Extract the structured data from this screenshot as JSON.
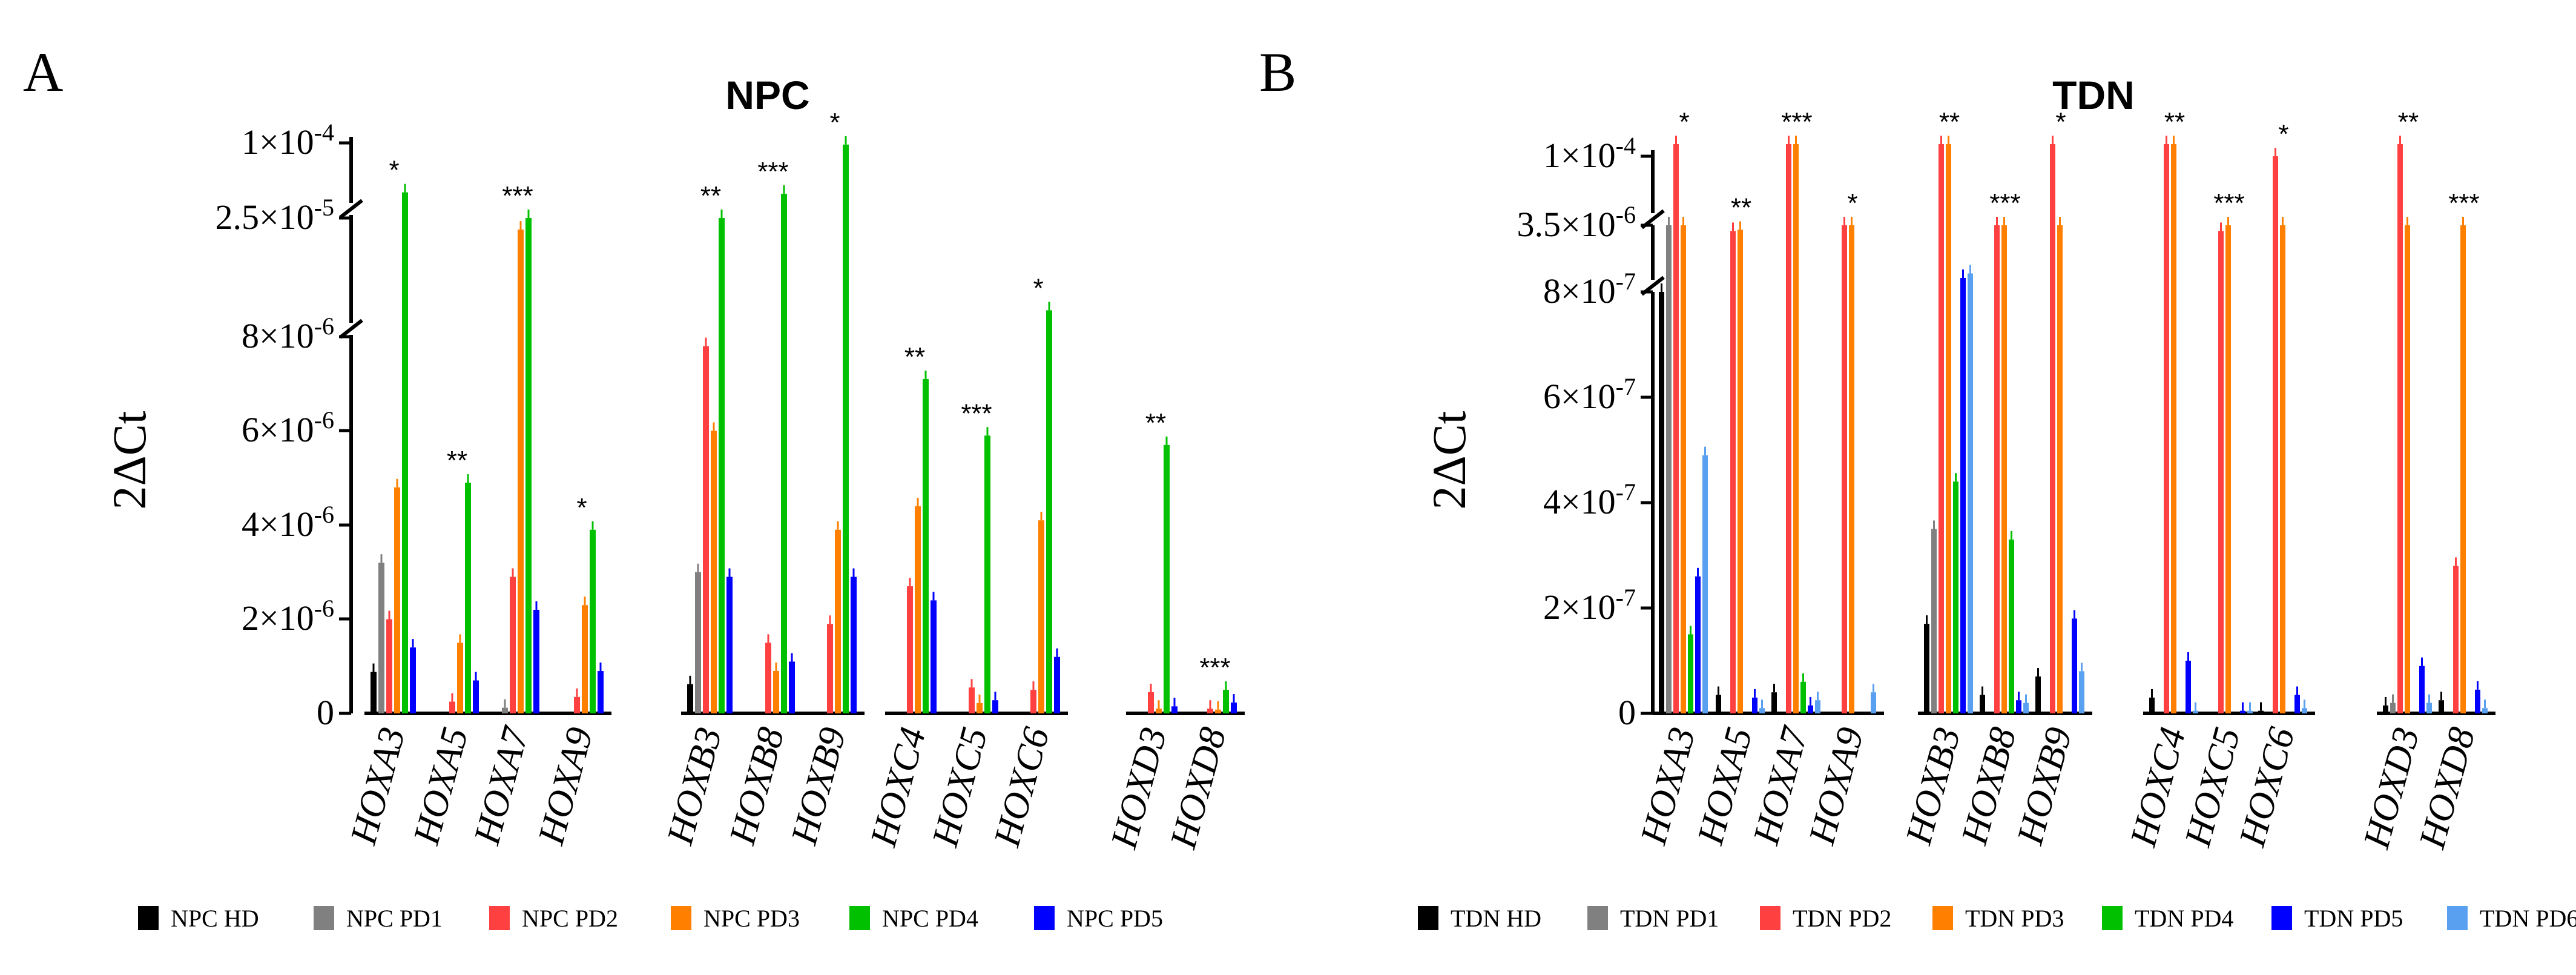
{
  "chart_data": [
    {
      "panel": "A",
      "type": "bar",
      "title": "NPC",
      "ylabel": "2ΔCt",
      "y_tick_labels": [
        "0",
        "2×10-6",
        "4×10-6",
        "6×10-6",
        "8×10-6",
        "2.5×10-5",
        "1×10-4"
      ],
      "y_ticks_values": [
        0,
        2e-06,
        4e-06,
        6e-06,
        8e-06,
        2.5e-05,
        0.0001
      ],
      "axis_break": "segmented y-axis with breaks above 8×10-6 and 2.5×10-5",
      "gene_groups": [
        [
          "HOXA3",
          "HOXA5",
          "HOXA7",
          "HOXA9"
        ],
        [
          "HOXB3",
          "HOXB8",
          "HOXB9"
        ],
        [
          "HOXC4",
          "HOXC5",
          "HOXC6"
        ],
        [
          "HOXD3",
          "HOXD8"
        ]
      ],
      "categories": [
        "HOXA3",
        "HOXA5",
        "HOXA7",
        "HOXA9",
        "HOXB3",
        "HOXB8",
        "HOXB9",
        "HOXC4",
        "HOXC5",
        "HOXC6",
        "HOXD3",
        "HOXD8"
      ],
      "series": [
        {
          "name": "NPC HD",
          "color": "#000000",
          "values": [
            8.8e-07,
            0,
            0,
            0,
            6.2e-07,
            0,
            0,
            0,
            0,
            0,
            0,
            0
          ]
        },
        {
          "name": "NPC PD1",
          "color": "#808080",
          "values": [
            3.2e-06,
            0,
            1.2e-07,
            0,
            3e-06,
            0,
            0,
            0,
            0,
            0,
            0,
            0
          ]
        },
        {
          "name": "NPC PD2",
          "color": "#ff4040",
          "values": [
            2e-06,
            2.5e-07,
            2.9e-06,
            3.5e-07,
            7.8e-06,
            1.5e-06,
            1.9e-06,
            2.7e-06,
            5.5e-07,
            5e-07,
            4.5e-07,
            1e-07
          ]
        },
        {
          "name": "NPC PD3",
          "color": "#ff8000",
          "values": [
            4.8e-06,
            1.5e-06,
            2.2e-05,
            2.3e-06,
            6e-06,
            9e-07,
            3.9e-06,
            4.4e-06,
            2.2e-07,
            4.1e-06,
            1e-07,
            8e-08
          ]
        },
        {
          "name": "NPC PD4",
          "color": "#00c000",
          "values": [
            3e-05,
            4.9e-06,
            2.5e-05,
            3.9e-06,
            2.5e-05,
            2.9e-05,
            9.6e-05,
            7.1e-06,
            5.9e-06,
            9e-06,
            5.7e-06,
            5e-07
          ]
        },
        {
          "name": "NPC PD5",
          "color": "#0000ff",
          "values": [
            1.4e-06,
            7e-07,
            2.2e-06,
            9e-07,
            2.9e-06,
            1.1e-06,
            2.9e-06,
            2.4e-06,
            2.8e-07,
            1.2e-06,
            1.5e-07,
            2.3e-07
          ]
        }
      ],
      "legend": [
        "NPC HD",
        "NPC PD1",
        "NPC PD2",
        "NPC PD3",
        "NPC PD4",
        "NPC PD5"
      ],
      "legend_position": "bottom",
      "significance_marks": [
        "*",
        "**",
        "***"
      ]
    },
    {
      "panel": "B",
      "type": "bar",
      "title": "TDN",
      "ylabel": "2ΔCt",
      "y_tick_labels": [
        "0",
        "2×10-7",
        "4×10-7",
        "6×10-7",
        "8×10-7",
        "3.5×10-6",
        "1×10-4"
      ],
      "y_ticks_values": [
        0,
        2e-07,
        4e-07,
        6e-07,
        8e-07,
        3.5e-06,
        0.0001
      ],
      "axis_break": "segmented y-axis with breaks above 8×10-7 and 3.5×10-6",
      "gene_groups": [
        [
          "HOXA3",
          "HOXA5",
          "HOXA7",
          "HOXA9"
        ],
        [
          "HOXB3",
          "HOXB8",
          "HOXB9"
        ],
        [
          "HOXC4",
          "HOXC5",
          "HOXC6"
        ],
        [
          "HOXD3",
          "HOXD8"
        ]
      ],
      "categories": [
        "HOXA3",
        "HOXA5",
        "HOXA7",
        "HOXA9",
        "HOXB3",
        "HOXB8",
        "HOXB9",
        "HOXC4",
        "HOXC5",
        "HOXC6",
        "HOXD3",
        "HOXD8"
      ],
      "series": [
        {
          "name": "TDN HD",
          "color": "#000000",
          "values": [
            8e-07,
            3.5e-08,
            4e-08,
            0,
            1.7e-07,
            3.5e-08,
            7e-08,
            3e-08,
            0,
            5e-09,
            1.5e-08,
            2.5e-08
          ]
        },
        {
          "name": "TDN PD1",
          "color": "#808080",
          "values": [
            3.5e-06,
            0,
            0,
            0,
            3.5e-07,
            0,
            0,
            0,
            0,
            0,
            2e-08,
            0
          ]
        },
        {
          "name": "TDN PD2",
          "color": "#ff4040",
          "values": [
            0.00015,
            3e-06,
            0.00015,
            3.5e-06,
            0.00015,
            3.5e-06,
            0.00012,
            0.00012,
            3e-06,
            0.0001,
            0.00012,
            2.8e-07
          ]
        },
        {
          "name": "TDN PD3",
          "color": "#ff8000",
          "values": [
            3.5e-06,
            3.1e-06,
            0.00015,
            3.5e-06,
            0.00015,
            3.5e-06,
            3.5e-06,
            0.00015,
            3.5e-06,
            3.5e-06,
            3.5e-06,
            3.5e-06
          ]
        },
        {
          "name": "TDN PD4",
          "color": "#00c000",
          "values": [
            1.5e-07,
            0,
            6e-08,
            0,
            4.4e-07,
            3.3e-07,
            0,
            0,
            0,
            0,
            0,
            0
          ]
        },
        {
          "name": "TDN PD5",
          "color": "#0000ff",
          "values": [
            2.6e-07,
            3e-08,
            1.5e-08,
            0,
            8.4e-07,
            2.5e-08,
            1.8e-07,
            1e-07,
            5e-09,
            3.5e-08,
            9e-08,
            4.5e-08
          ]
        },
        {
          "name": "TDN PD6",
          "color": "#5aa0f0",
          "values": [
            4.9e-07,
            1e-08,
            2.5e-08,
            4e-08,
            9.5e-07,
            2e-08,
            8e-08,
            5e-09,
            5e-09,
            1e-08,
            2e-08,
            1e-08
          ]
        }
      ],
      "legend": [
        "TDN HD",
        "TDN PD1",
        "TDN PD2",
        "TDN PD3",
        "TDN PD4",
        "TDN PD5",
        "TDN PD6"
      ],
      "legend_position": "bottom",
      "significance_marks": [
        "*",
        "**",
        "***"
      ]
    }
  ]
}
